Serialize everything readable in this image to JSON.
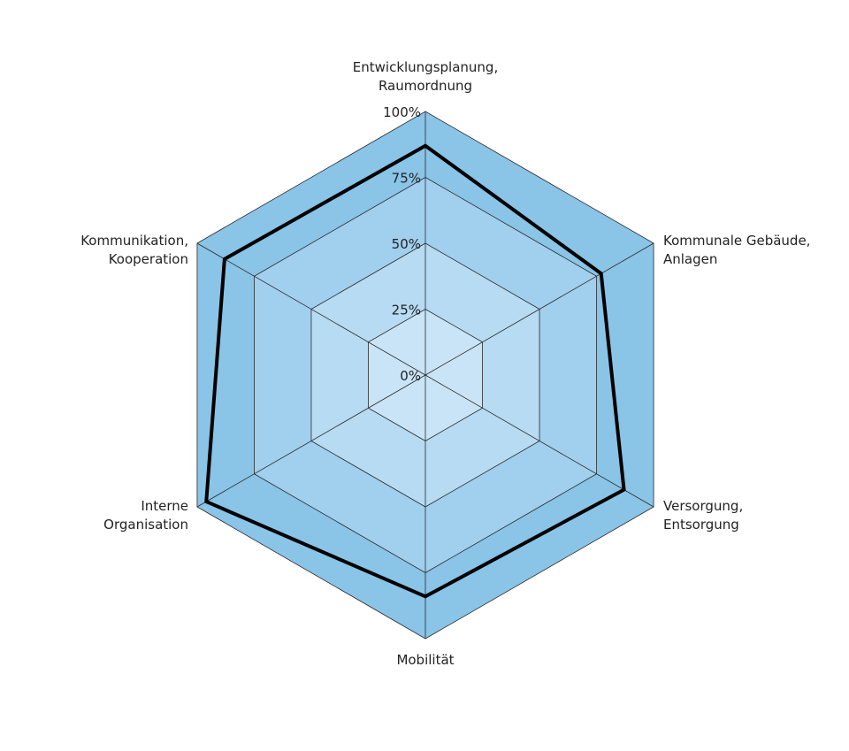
{
  "chart_data": {
    "type": "radar",
    "axes": [
      [
        "Entwicklungsplanung,",
        "Raumordnung"
      ],
      [
        "Kommunale Gebäude,",
        "Anlagen"
      ],
      [
        "Versorgung,",
        "Entsorgung"
      ],
      [
        "Mobilität"
      ],
      [
        "Interne",
        "Organisation"
      ],
      [
        "Kommunikation,",
        "Kooperation"
      ]
    ],
    "tick_labels": [
      "0%",
      "25%",
      "50%",
      "75%",
      "100%"
    ],
    "ticks": [
      0,
      25,
      50,
      75,
      100
    ],
    "range": [
      0,
      100
    ],
    "series": [
      {
        "values": [
          87,
          77,
          87,
          84,
          96,
          88
        ]
      }
    ],
    "colors": {
      "ring_100": "#8ac4e7",
      "ring_75": "#a1cfee",
      "ring_50": "#b6dbf2",
      "ring_25": "#c9e4f6",
      "grid_line": "#2a2a2a",
      "series_line": "#000000"
    }
  }
}
